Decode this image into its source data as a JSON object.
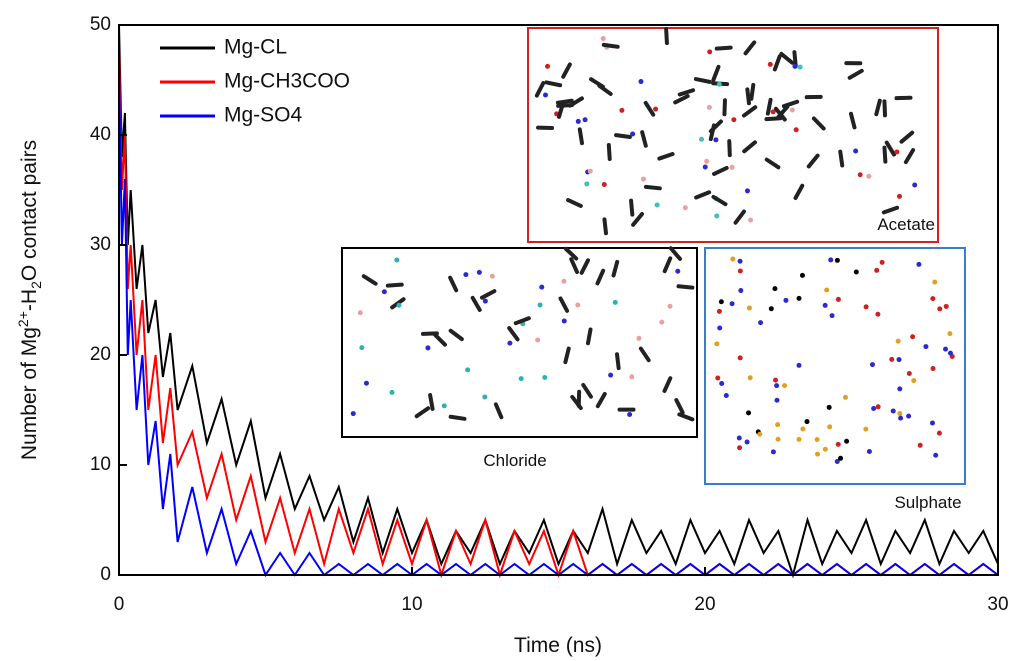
{
  "chart_data": {
    "type": "line",
    "x_label": "Time (ns)",
    "y_label_parts": [
      "Number of Mg",
      "2+",
      "-H",
      "2",
      "O contact pairs"
    ],
    "x": [
      0,
      0.1,
      0.2,
      0.3,
      0.4,
      0.6,
      0.8,
      1,
      1.25,
      1.5,
      1.75,
      2,
      2.5,
      3,
      3.5,
      4,
      4.5,
      5,
      5.5,
      6,
      6.5,
      7,
      7.5,
      8,
      8.5,
      9,
      9.5,
      10,
      10.5,
      11,
      11.5,
      12,
      12.5,
      13,
      13.5,
      14,
      14.5,
      15,
      15.5,
      16,
      16.5,
      17,
      17.5,
      18,
      18.5,
      19,
      19.5,
      20,
      20.5,
      21,
      21.5,
      22,
      22.5,
      23,
      23.5,
      24,
      24.5,
      25,
      25.5,
      26,
      26.5,
      27,
      27.5,
      28,
      28.5,
      29,
      29.5,
      30
    ],
    "series": [
      {
        "name": "Mg-CL",
        "color": "#000000",
        "values": [
          50,
          38,
          42,
          30,
          35,
          26,
          30,
          22,
          25,
          18,
          22,
          15,
          19,
          12,
          16,
          10,
          14,
          7,
          11,
          6,
          9,
          5,
          8,
          3,
          7,
          2,
          6,
          2,
          5,
          1,
          4,
          2,
          5,
          1,
          4,
          2,
          5,
          1,
          4,
          2,
          6,
          1,
          5,
          2,
          4,
          1,
          5,
          2,
          4,
          1,
          5,
          2,
          4,
          0,
          5,
          1,
          4,
          2,
          5,
          1,
          4,
          2,
          5,
          1,
          4,
          2,
          4,
          1
        ]
      },
      {
        "name": "Mg-CH3COO",
        "color": "#ff0000",
        "values": [
          48,
          35,
          40,
          26,
          30,
          20,
          25,
          15,
          20,
          12,
          17,
          10,
          13,
          7,
          11,
          5,
          9,
          3,
          7,
          2,
          6,
          1,
          6,
          2,
          6,
          1,
          5,
          1,
          5,
          0,
          4,
          1,
          5,
          0,
          4,
          1,
          4,
          0,
          4,
          0,
          1,
          0,
          1,
          0,
          1,
          0,
          1,
          0,
          1,
          0,
          1,
          0,
          1,
          0,
          1,
          0,
          1,
          0,
          1,
          0,
          1,
          0,
          1,
          0,
          1,
          0,
          1,
          0
        ]
      },
      {
        "name": "Mg-SO4",
        "color": "#0000ff",
        "values": [
          46,
          30,
          36,
          20,
          25,
          15,
          20,
          10,
          14,
          6,
          11,
          3,
          8,
          2,
          6,
          1,
          4,
          0,
          2,
          0,
          2,
          0,
          1,
          0,
          1,
          0,
          1,
          0,
          1,
          0,
          1,
          0,
          1,
          0,
          1,
          0,
          1,
          0,
          1,
          0,
          1,
          0,
          1,
          0,
          1,
          0,
          1,
          0,
          1,
          0,
          1,
          0,
          1,
          0,
          1,
          0,
          1,
          0,
          1,
          0,
          1,
          0,
          1,
          0,
          1,
          0,
          1,
          0
        ]
      }
    ],
    "xlim": [
      0,
      30
    ],
    "xticks": [
      0,
      10,
      20,
      30
    ],
    "ylim": [
      0,
      50
    ],
    "yticks": [
      0,
      10,
      20,
      30,
      40,
      50
    ],
    "legend": "upper left",
    "annotations": [
      "Acetate",
      "Chloride",
      "Sulphate"
    ]
  }
}
